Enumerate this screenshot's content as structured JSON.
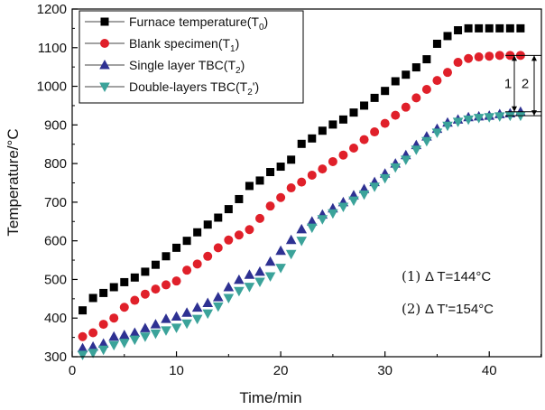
{
  "chart_data": {
    "type": "scatter",
    "title": "",
    "xlabel": "Time/min",
    "ylabel": "Temperature/°C",
    "xlim": [
      0,
      45
    ],
    "ylim": [
      300,
      1200
    ],
    "xticks": [
      "0",
      "10",
      "20",
      "30",
      "40"
    ],
    "yticks": [
      "300",
      "400",
      "500",
      "600",
      "700",
      "800",
      "900",
      "1000",
      "1100",
      "1200"
    ],
    "grid": false,
    "legend_position": "top-left",
    "series": [
      {
        "name": "Furnace temperature(T0)",
        "legend_main": "Furnace temperature(T",
        "legend_sub": "0",
        "legend_tail": ")",
        "marker": "square",
        "color": "#000000",
        "x": [
          1,
          2,
          3,
          4,
          5,
          6,
          7,
          8,
          9,
          10,
          11,
          12,
          13,
          14,
          15,
          16,
          17,
          18,
          19,
          20,
          21,
          22,
          23,
          24,
          25,
          26,
          27,
          28,
          29,
          30,
          31,
          32,
          33,
          34,
          35,
          36,
          37,
          38,
          39,
          40,
          41,
          42,
          43
        ],
        "y": [
          420,
          452,
          465,
          480,
          493,
          505,
          520,
          538,
          560,
          582,
          600,
          622,
          642,
          660,
          682,
          708,
          742,
          756,
          778,
          792,
          810,
          851,
          865,
          885,
          901,
          914,
          932,
          950,
          970,
          988,
          1013,
          1030,
          1049,
          1070,
          1110,
          1130,
          1145,
          1150,
          1150,
          1150,
          1150,
          1150,
          1150
        ]
      },
      {
        "name": "Blank specimen(T1)",
        "legend_main": "Blank specimen(T",
        "legend_sub": "1",
        "legend_tail": ")",
        "marker": "circle",
        "color": "#e0202a",
        "x": [
          1,
          2,
          3,
          4,
          5,
          6,
          7,
          8,
          9,
          10,
          11,
          12,
          13,
          14,
          15,
          16,
          17,
          18,
          19,
          20,
          21,
          22,
          23,
          24,
          25,
          26,
          27,
          28,
          29,
          30,
          31,
          32,
          33,
          34,
          35,
          36,
          37,
          38,
          39,
          40,
          41,
          42,
          43
        ],
        "y": [
          352,
          362,
          384,
          400,
          428,
          446,
          462,
          475,
          486,
          496,
          524,
          540,
          560,
          582,
          602,
          615,
          629,
          658,
          690,
          712,
          737,
          752,
          770,
          786,
          805,
          822,
          840,
          862,
          882,
          904,
          925,
          946,
          970,
          992,
          1015,
          1036,
          1062,
          1072,
          1076,
          1078,
          1080,
          1080,
          1080
        ]
      },
      {
        "name": "Single layer TBC(T2)",
        "legend_main": "Single layer TBC(T",
        "legend_sub": "2",
        "legend_tail": ")",
        "marker": "triangle-up",
        "color": "#2e3192",
        "x": [
          1,
          2,
          3,
          4,
          5,
          6,
          7,
          8,
          9,
          10,
          11,
          12,
          13,
          14,
          15,
          16,
          17,
          18,
          19,
          20,
          21,
          22,
          23,
          24,
          25,
          26,
          27,
          28,
          29,
          30,
          31,
          32,
          33,
          34,
          35,
          36,
          37,
          38,
          39,
          40,
          41,
          42,
          43
        ],
        "y": [
          322,
          326,
          334,
          352,
          356,
          362,
          374,
          384,
          398,
          404,
          414,
          427,
          439,
          454,
          480,
          499,
          512,
          520,
          546,
          574,
          602,
          630,
          650,
          668,
          684,
          700,
          718,
          734,
          752,
          774,
          800,
          822,
          848,
          870,
          890,
          906,
          914,
          920,
          922,
          924,
          928,
          930,
          934
        ]
      },
      {
        "name": "Double-layers TBC(T2')",
        "legend_main": "Double-layers TBC(T",
        "legend_sub": "2",
        "legend_tail": "')",
        "marker": "triangle-down",
        "color": "#3ba39a",
        "x": [
          1,
          2,
          3,
          4,
          5,
          6,
          7,
          8,
          9,
          10,
          11,
          12,
          13,
          14,
          15,
          16,
          17,
          18,
          19,
          20,
          21,
          22,
          23,
          24,
          25,
          26,
          27,
          28,
          29,
          30,
          31,
          32,
          33,
          34,
          35,
          36,
          37,
          38,
          39,
          40,
          41,
          42,
          43
        ],
        "y": [
          305,
          310,
          318,
          330,
          336,
          344,
          352,
          360,
          368,
          375,
          386,
          398,
          412,
          430,
          452,
          470,
          481,
          494,
          508,
          530,
          566,
          600,
          634,
          656,
          671,
          688,
          704,
          720,
          740,
          762,
          790,
          810,
          836,
          858,
          880,
          898,
          908,
          914,
          918,
          920,
          922,
          924,
          924
        ]
      }
    ],
    "bracket": {
      "label_inner": "1",
      "label_outer": "2"
    },
    "annotations": [
      {
        "num": "(1)",
        "text": "Δ T=144°C"
      },
      {
        "num": "(2)",
        "text": "Δ T'=154°C"
      }
    ]
  }
}
